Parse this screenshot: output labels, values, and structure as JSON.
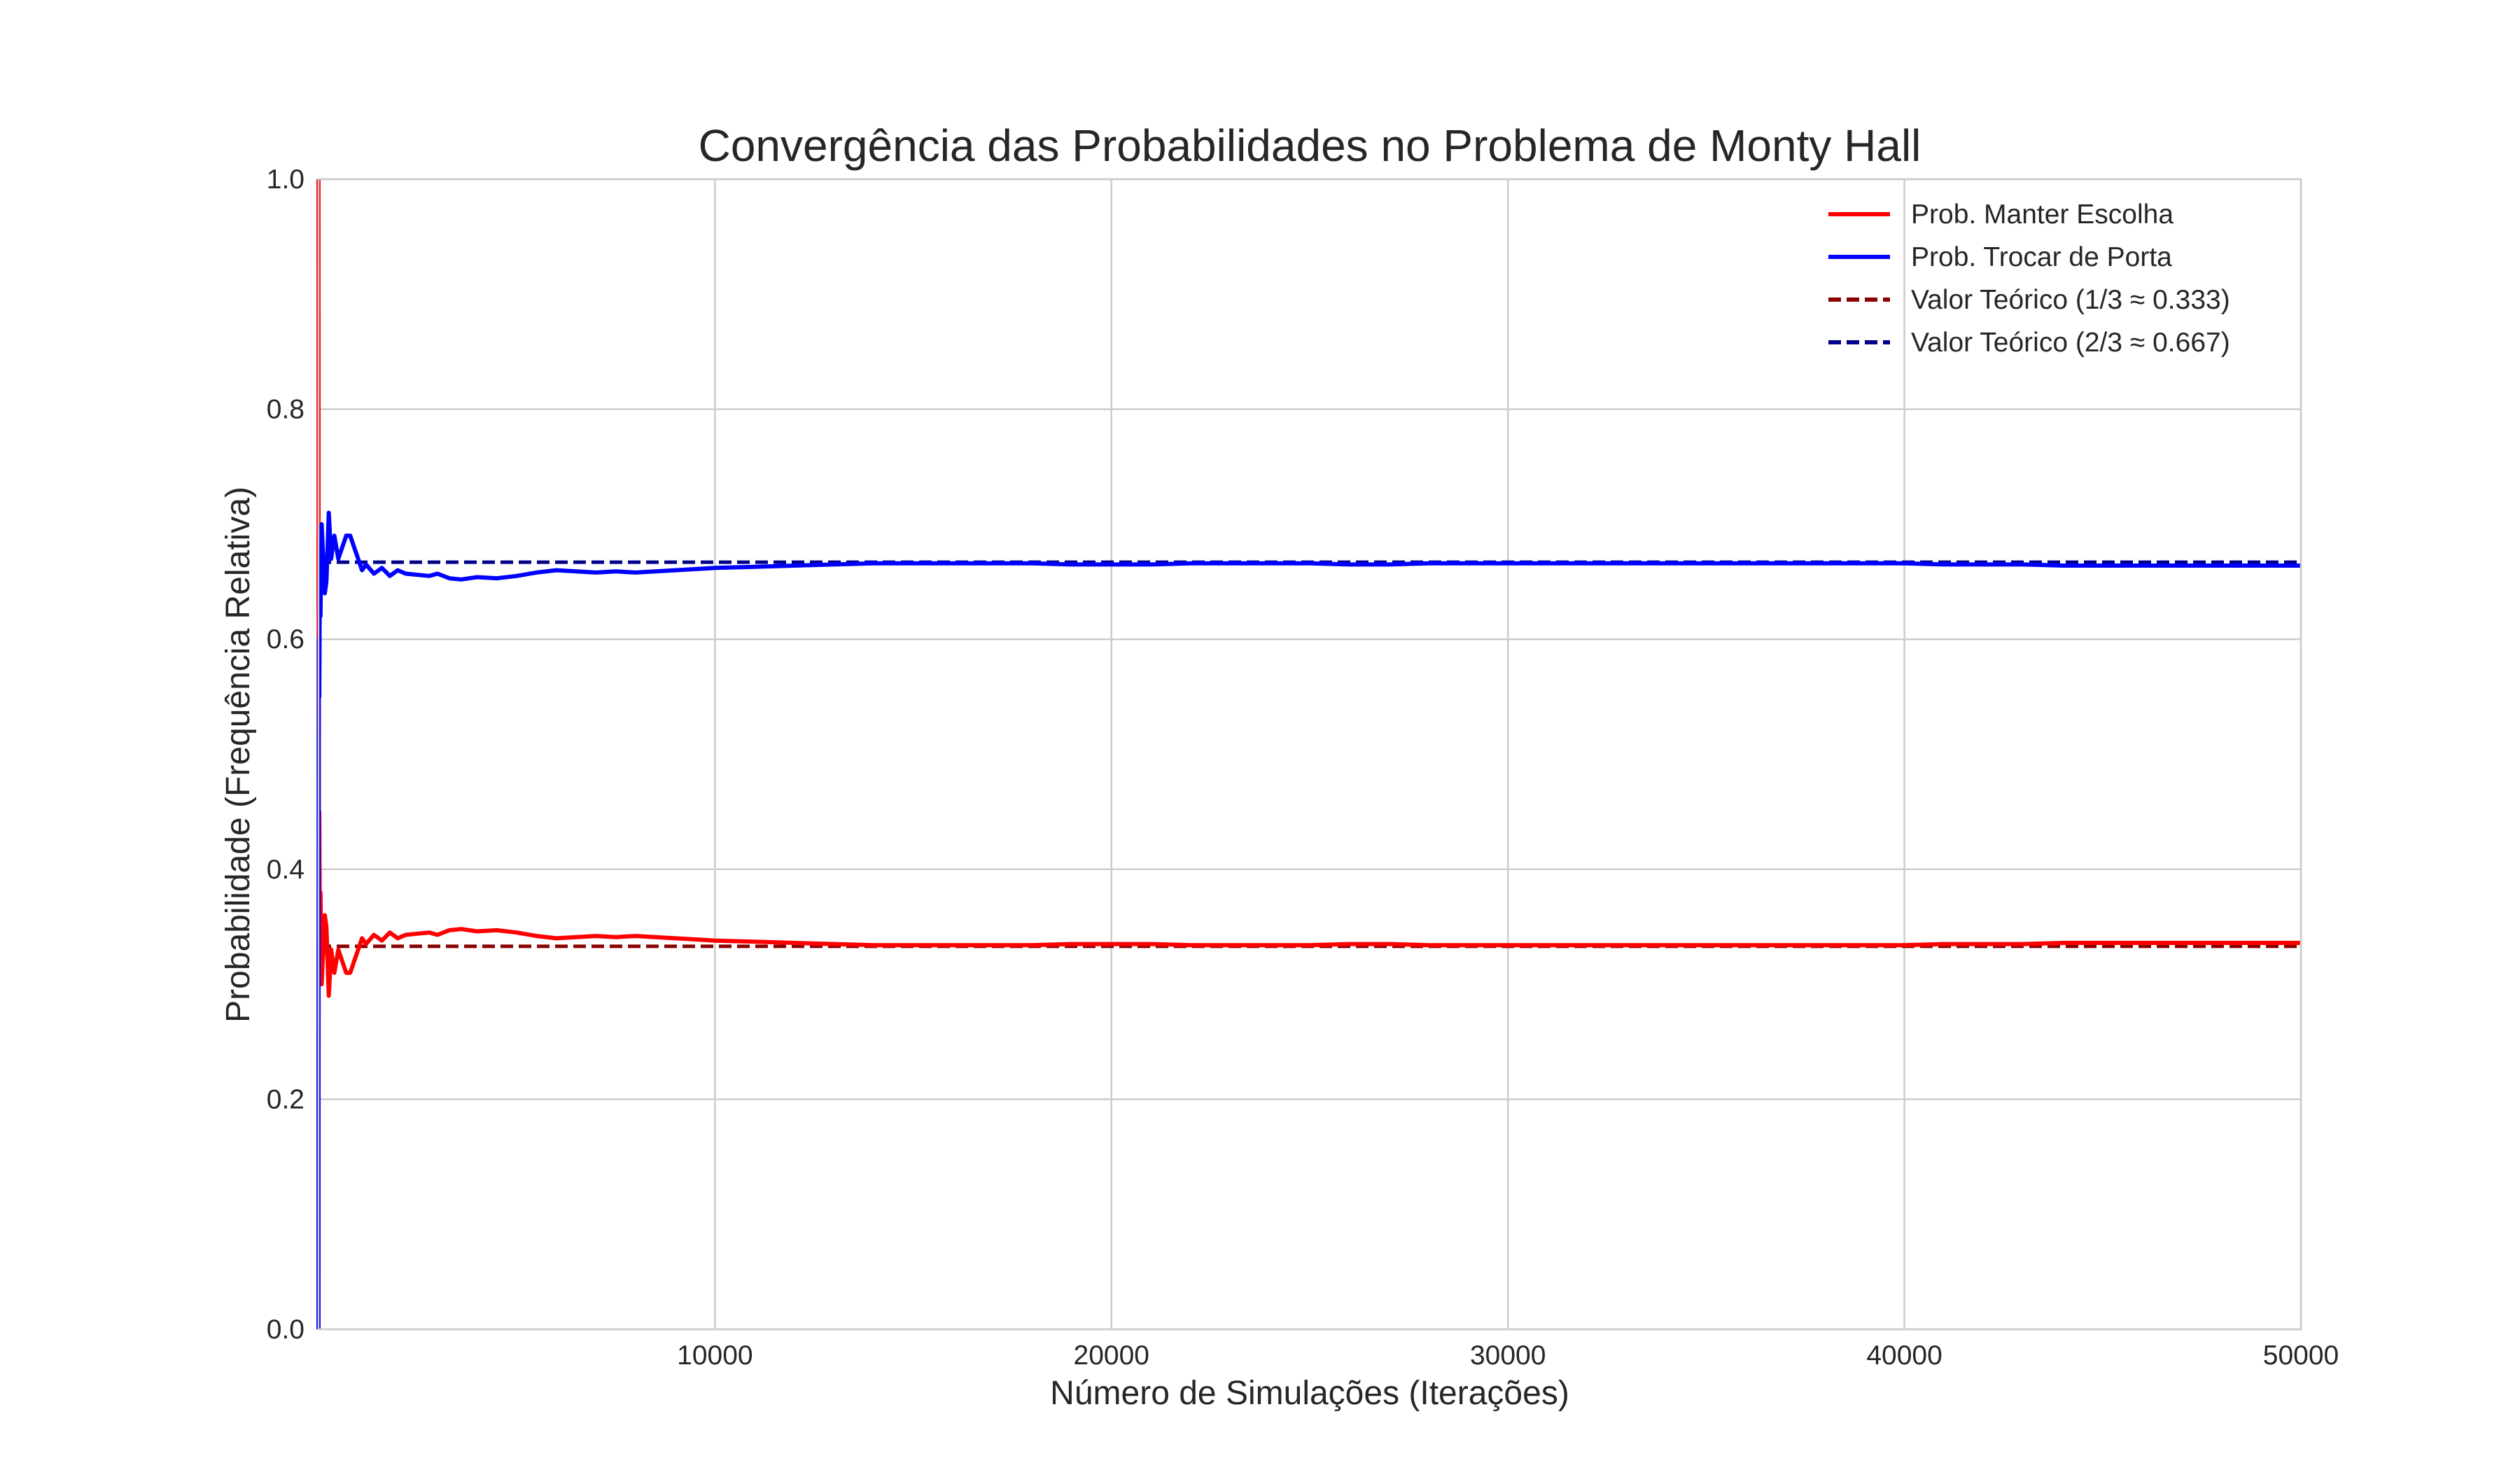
{
  "chart_data": {
    "type": "line",
    "title": "Convergência das Probabilidades no Problema de Monty Hall",
    "xlabel": "Número de Simulações (Iterações)",
    "ylabel": "Probabilidade (Frequência Relativa)",
    "xlim": [
      1,
      50000
    ],
    "ylim": [
      0.0,
      1.0
    ],
    "xticks": [
      10000,
      20000,
      30000,
      40000,
      50000
    ],
    "xtick_labels": [
      "10000",
      "20000",
      "30000",
      "40000",
      "50000"
    ],
    "yticks": [
      0.0,
      0.2,
      0.4,
      0.6,
      0.8,
      1.0
    ],
    "ytick_labels": [
      "0.0",
      "0.2",
      "0.4",
      "0.6",
      "0.8",
      "1.0"
    ],
    "grid": true,
    "legend_position": "top-right",
    "series": [
      {
        "name": "Prob. Manter Escolha",
        "color": "#ff0000",
        "style": "solid",
        "x": [
          1,
          3,
          6,
          10,
          20,
          35,
          50,
          80,
          120,
          160,
          200,
          260,
          320,
          400,
          500,
          600,
          700,
          800,
          900,
          1000,
          1100,
          1200,
          1400,
          1600,
          1800,
          2000,
          2200,
          2500,
          2800,
          3000,
          3300,
          3600,
          4000,
          4500,
          5000,
          5500,
          6000,
          6500,
          7000,
          7500,
          8000,
          8500,
          9000,
          9500,
          10000,
          11000,
          12000,
          13000,
          14000,
          15000,
          16000,
          17000,
          18000,
          19000,
          20000,
          21000,
          22000,
          23000,
          24000,
          25000,
          26000,
          27000,
          28000,
          29000,
          30000,
          31000,
          32000,
          33000,
          34000,
          35000,
          36000,
          37000,
          38000,
          39000,
          40000,
          41000,
          42000,
          43000,
          44000,
          45000,
          46000,
          47000,
          48000,
          49000,
          50000
        ],
        "values": [
          1.0,
          0.667,
          0.5,
          0.4,
          0.45,
          0.34,
          0.38,
          0.3,
          0.33,
          0.36,
          0.35,
          0.29,
          0.33,
          0.31,
          0.33,
          0.32,
          0.31,
          0.31,
          0.32,
          0.33,
          0.34,
          0.335,
          0.343,
          0.338,
          0.345,
          0.34,
          0.343,
          0.344,
          0.345,
          0.343,
          0.347,
          0.348,
          0.346,
          0.347,
          0.345,
          0.342,
          0.34,
          0.341,
          0.342,
          0.341,
          0.342,
          0.341,
          0.34,
          0.339,
          0.338,
          0.337,
          0.336,
          0.335,
          0.334,
          0.334,
          0.334,
          0.334,
          0.334,
          0.335,
          0.335,
          0.335,
          0.334,
          0.334,
          0.334,
          0.334,
          0.335,
          0.335,
          0.334,
          0.334,
          0.334,
          0.334,
          0.334,
          0.334,
          0.334,
          0.334,
          0.334,
          0.334,
          0.334,
          0.334,
          0.334,
          0.335,
          0.335,
          0.335,
          0.336,
          0.336,
          0.336,
          0.336,
          0.336,
          0.336,
          0.336
        ]
      },
      {
        "name": "Prob. Trocar de Porta",
        "color": "#0000ff",
        "style": "solid",
        "x": [
          1,
          3,
          6,
          10,
          20,
          35,
          50,
          80,
          120,
          160,
          200,
          260,
          320,
          400,
          500,
          600,
          700,
          800,
          900,
          1000,
          1100,
          1200,
          1400,
          1600,
          1800,
          2000,
          2200,
          2500,
          2800,
          3000,
          3300,
          3600,
          4000,
          4500,
          5000,
          5500,
          6000,
          6500,
          7000,
          7500,
          8000,
          8500,
          9000,
          9500,
          10000,
          11000,
          12000,
          13000,
          14000,
          15000,
          16000,
          17000,
          18000,
          19000,
          20000,
          21000,
          22000,
          23000,
          24000,
          25000,
          26000,
          27000,
          28000,
          29000,
          30000,
          31000,
          32000,
          33000,
          34000,
          35000,
          36000,
          37000,
          38000,
          39000,
          40000,
          41000,
          42000,
          43000,
          44000,
          45000,
          46000,
          47000,
          48000,
          49000,
          50000
        ],
        "values": [
          0.0,
          0.333,
          0.5,
          0.6,
          0.55,
          0.66,
          0.62,
          0.7,
          0.67,
          0.64,
          0.65,
          0.71,
          0.67,
          0.69,
          0.67,
          0.68,
          0.69,
          0.69,
          0.68,
          0.67,
          0.66,
          0.665,
          0.657,
          0.662,
          0.655,
          0.66,
          0.657,
          0.656,
          0.655,
          0.657,
          0.653,
          0.652,
          0.654,
          0.653,
          0.655,
          0.658,
          0.66,
          0.659,
          0.658,
          0.659,
          0.658,
          0.659,
          0.66,
          0.661,
          0.662,
          0.663,
          0.664,
          0.665,
          0.666,
          0.666,
          0.666,
          0.666,
          0.666,
          0.665,
          0.665,
          0.665,
          0.666,
          0.666,
          0.666,
          0.666,
          0.665,
          0.665,
          0.666,
          0.666,
          0.666,
          0.666,
          0.666,
          0.666,
          0.666,
          0.666,
          0.666,
          0.666,
          0.666,
          0.666,
          0.666,
          0.665,
          0.665,
          0.665,
          0.664,
          0.664,
          0.664,
          0.664,
          0.664,
          0.664,
          0.664
        ]
      },
      {
        "name": "Valor Teórico (1/3 ≈ 0.333)",
        "color": "#8b0000",
        "style": "dashed",
        "x": [
          1,
          50000
        ],
        "values": [
          0.333,
          0.333
        ]
      },
      {
        "name": "Valor Teórico (2/3 ≈ 0.667)",
        "color": "#00008b",
        "style": "dashed",
        "x": [
          1,
          50000
        ],
        "values": [
          0.667,
          0.667
        ]
      }
    ]
  }
}
